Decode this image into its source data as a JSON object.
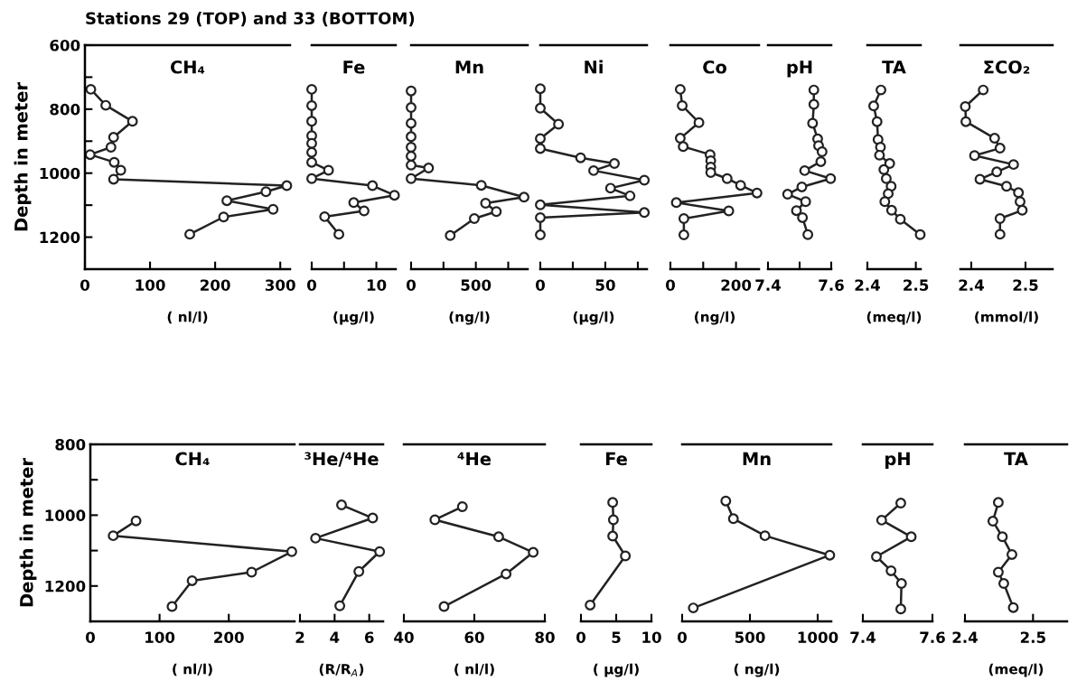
{
  "chart_data": [
    {
      "type": "line",
      "title": "CH₄",
      "xlabel": "( nl/l)",
      "ylabel": "Depth in meter",
      "annotations": [
        "Stations 29 (TOP) and 33 (BOTTOM)"
      ],
      "marker": "circle",
      "xlim": [
        0,
        315
      ],
      "xticks": [
        0,
        100,
        200,
        300
      ],
      "ylim": [
        1300,
        600
      ],
      "yticks": [
        600,
        {
          "value": 700,
          "label": null
        },
        800,
        {
          "value": 900,
          "label": null
        },
        1000,
        {
          "value": 1100,
          "label": null
        },
        1200
      ],
      "series": [
        {
          "color": "#222222",
          "x": [
            9,
            32,
            73,
            44,
            40,
            8,
            45,
            55,
            44,
            310,
            278,
            218,
            289,
            213,
            161
          ],
          "values": [
            738,
            788,
            838,
            888,
            919,
            942,
            966,
            991,
            1019,
            1039,
            1058,
            1086,
            1113,
            1137,
            1191
          ]
        }
      ]
    },
    {
      "type": "line",
      "title": "Fe",
      "xlabel": "(µg/l)",
      "tick_labels": "x",
      "marker": "circle",
      "xlim": [
        0,
        13
      ],
      "xticks": [
        0,
        {
          "value": 5,
          "label": null
        },
        10
      ],
      "ylim": [
        1300,
        600
      ],
      "series": [
        {
          "color": "#222222",
          "x": [
            0,
            0,
            0,
            0,
            0,
            0,
            0,
            2.6,
            0,
            9.4,
            12.8,
            6.5,
            8.1,
            2.0,
            4.2
          ],
          "values": [
            738,
            789,
            838,
            883,
            907,
            935,
            966,
            991,
            1017,
            1039,
            1069,
            1092,
            1118,
            1136,
            1191
          ]
        }
      ]
    },
    {
      "type": "line",
      "title": "Mn",
      "xlabel": "(ng/l)",
      "tick_labels": "x",
      "marker": "circle",
      "xlim": [
        0,
        900
      ],
      "xticks": [
        0,
        {
          "value": 250,
          "label": null
        },
        500,
        {
          "value": 750,
          "label": null
        }
      ],
      "ylim": [
        1300,
        600
      ],
      "series": [
        {
          "color": "#222222",
          "x": [
            0,
            0,
            0,
            0,
            0,
            0,
            0,
            135,
            0,
            542,
            872,
            575,
            658,
            488,
            302
          ],
          "values": [
            743,
            795,
            844,
            886,
            919,
            947,
            975,
            984,
            1017,
            1038,
            1075,
            1094,
            1120,
            1142,
            1195
          ]
        }
      ]
    },
    {
      "type": "line",
      "title": "Ni",
      "xlabel": "(µg/l)",
      "tick_labels": "x",
      "marker": "circle",
      "xlim": [
        0,
        82
      ],
      "xticks": [
        0,
        {
          "value": 25,
          "label": null
        },
        50,
        {
          "value": 75,
          "label": null
        }
      ],
      "ylim": [
        1300,
        600
      ],
      "series": [
        {
          "color": "#222222",
          "x": [
            0,
            0,
            14,
            0,
            0,
            31,
            57,
            41,
            80,
            54,
            69,
            0,
            80,
            0,
            0
          ],
          "values": [
            736,
            797,
            847,
            892,
            923,
            952,
            970,
            992,
            1022,
            1047,
            1071,
            1099,
            1123,
            1139,
            1193
          ]
        }
      ]
    },
    {
      "type": "line",
      "title": "Co",
      "xlabel": "(ng/l)",
      "tick_labels": "x",
      "marker": "circle",
      "xlim": [
        0,
        270
      ],
      "xticks": [
        0,
        {
          "value": 100,
          "label": null
        },
        200
      ],
      "ylim": [
        1300,
        600
      ],
      "series": [
        {
          "color": "#222222",
          "x": [
            30,
            36,
            87,
            30,
            39,
            121,
            123,
            123,
            123,
            173,
            214,
            264,
            18,
            178,
            41,
            41
          ],
          "values": [
            738,
            789,
            842,
            891,
            917,
            942,
            961,
            981,
            998,
            1017,
            1038,
            1062,
            1092,
            1118,
            1142,
            1193
          ]
        }
      ]
    },
    {
      "type": "line",
      "title": "pH",
      "tick_labels": "x",
      "marker": "circle",
      "xlim": [
        7.4,
        7.6
      ],
      "xticks": [
        7.4,
        {
          "value": 7.5,
          "label": null
        },
        7.6
      ],
      "ylim": [
        1300,
        600
      ],
      "series": [
        {
          "color": "#222222",
          "x": [
            7.545,
            7.545,
            7.541,
            7.557,
            7.56,
            7.571,
            7.567,
            7.516,
            7.598,
            7.507,
            7.462,
            7.519,
            7.49,
            7.509,
            7.526
          ],
          "values": [
            740,
            785,
            844,
            893,
            914,
            933,
            964,
            992,
            1017,
            1043,
            1066,
            1089,
            1117,
            1139,
            1192
          ]
        }
      ]
    },
    {
      "type": "line",
      "title": "TA",
      "xlabel": "(meq/l)",
      "tick_labels": "x",
      "marker": "circle",
      "xlim": [
        2.4,
        2.51
      ],
      "xticks": [
        2.4,
        2.5
      ],
      "ylim": [
        1300,
        600
      ],
      "series": [
        {
          "color": "#222222",
          "x": [
            2.428,
            2.413,
            2.42,
            2.422,
            2.427,
            2.425,
            2.446,
            2.434,
            2.439,
            2.449,
            2.443,
            2.436,
            2.45,
            2.468,
            2.509
          ],
          "values": [
            740,
            790,
            839,
            895,
            919,
            944,
            970,
            989,
            1017,
            1041,
            1064,
            1089,
            1116,
            1144,
            1192
          ]
        }
      ]
    },
    {
      "type": "line",
      "title": "ΣCO₂",
      "xlabel": "(mmol/l)",
      "tick_labels": "x",
      "marker": "circle",
      "xlim": [
        2.38,
        2.55
      ],
      "xticks": [
        2.4,
        2.5
      ],
      "ylim": [
        1300,
        600
      ],
      "series": [
        {
          "color": "#222222",
          "x": [
            2.422,
            2.389,
            2.39,
            2.443,
            2.453,
            2.406,
            2.478,
            2.447,
            2.416,
            2.465,
            2.487,
            2.49,
            2.494,
            2.453,
            2.453
          ],
          "values": [
            740,
            792,
            839,
            891,
            922,
            945,
            973,
            996,
            1019,
            1041,
            1061,
            1089,
            1116,
            1142,
            1191
          ]
        }
      ]
    },
    {
      "type": "line",
      "title": "CH₄",
      "xlabel": "( nl/l)",
      "ylabel": "Depth in meter",
      "marker": "circle",
      "xlim": [
        0,
        295
      ],
      "xticks": [
        0,
        100,
        200
      ],
      "ylim": [
        1300,
        800
      ],
      "yticks": [
        800,
        {
          "value": 900,
          "label": null
        },
        1000,
        {
          "value": 1100,
          "label": null
        },
        1200
      ],
      "series": [
        {
          "color": "#222222",
          "x": [
            66,
            33,
            291,
            233,
            147,
            118
          ],
          "values": [
            1016,
            1058,
            1103,
            1161,
            1185,
            1258
          ]
        }
      ]
    },
    {
      "type": "line",
      "title": "³He/⁴He",
      "xlabel": "(R/R$_{A}$)",
      "tick_labels": "x",
      "marker": "circle",
      "xlim": [
        2,
        6.8
      ],
      "xticks": [
        2,
        4,
        6
      ],
      "ylim": [
        1300,
        800
      ],
      "series": [
        {
          "color": "#222222",
          "x": [
            4.4,
            6.2,
            2.9,
            6.6,
            5.4,
            4.3
          ],
          "values": [
            971,
            1008,
            1065,
            1103,
            1159,
            1256
          ]
        }
      ]
    },
    {
      "type": "line",
      "title": "⁴He",
      "xlabel": "( nl/l)",
      "tick_labels": "x",
      "marker": "circle",
      "xlim": [
        40,
        80
      ],
      "xticks": [
        40,
        60,
        80
      ],
      "ylim": [
        1300,
        800
      ],
      "series": [
        {
          "color": "#222222",
          "x": [
            56.6,
            48.8,
            66.9,
            76.7,
            69,
            51.4
          ],
          "values": [
            976,
            1013,
            1061,
            1105,
            1166,
            1258
          ]
        }
      ]
    },
    {
      "type": "line",
      "title": "Fe",
      "xlabel": "( µg/l)",
      "tick_labels": "x",
      "marker": "circle",
      "xlim": [
        0,
        10
      ],
      "xticks": [
        0,
        5,
        10
      ],
      "ylim": [
        1300,
        800
      ],
      "series": [
        {
          "color": "#222222",
          "x": [
            4.5,
            4.6,
            4.5,
            6.3,
            1.3
          ],
          "values": [
            964,
            1013,
            1059,
            1115,
            1254
          ]
        }
      ]
    },
    {
      "type": "line",
      "title": "Mn",
      "xlabel": "( ng/l)",
      "tick_labels": "x",
      "marker": "circle",
      "xlim": [
        0,
        1100
      ],
      "xticks": [
        0,
        500,
        1000
      ],
      "ylim": [
        1300,
        800
      ],
      "series": [
        {
          "color": "#222222",
          "x": [
            322,
            378,
            611,
            1089,
            82
          ],
          "values": [
            960,
            1010,
            1058,
            1113,
            1262
          ]
        }
      ]
    },
    {
      "type": "line",
      "title": "pH",
      "tick_labels": "x",
      "marker": "circle",
      "xlim": [
        7.4,
        7.6
      ],
      "xticks": [
        7.4,
        7.6
      ],
      "ylim": [
        1300,
        800
      ],
      "series": [
        {
          "color": "#222222",
          "x": [
            7.509,
            7.454,
            7.539,
            7.439,
            7.481,
            7.511,
            7.509
          ],
          "values": [
            966,
            1014,
            1061,
            1117,
            1157,
            1193,
            1265
          ]
        }
      ]
    },
    {
      "type": "line",
      "title": "TA",
      "xlabel": "(meq/l)",
      "tick_labels": "x",
      "marker": "circle",
      "xlim": [
        2.4,
        2.55
      ],
      "xticks": [
        2.4,
        2.5
      ],
      "ylim": [
        1300,
        800
      ],
      "series": [
        {
          "color": "#222222",
          "x": [
            2.449,
            2.441,
            2.455,
            2.469,
            2.449,
            2.457,
            2.471
          ],
          "values": [
            964,
            1017,
            1061,
            1111,
            1161,
            1193,
            1261
          ]
        }
      ]
    }
  ]
}
